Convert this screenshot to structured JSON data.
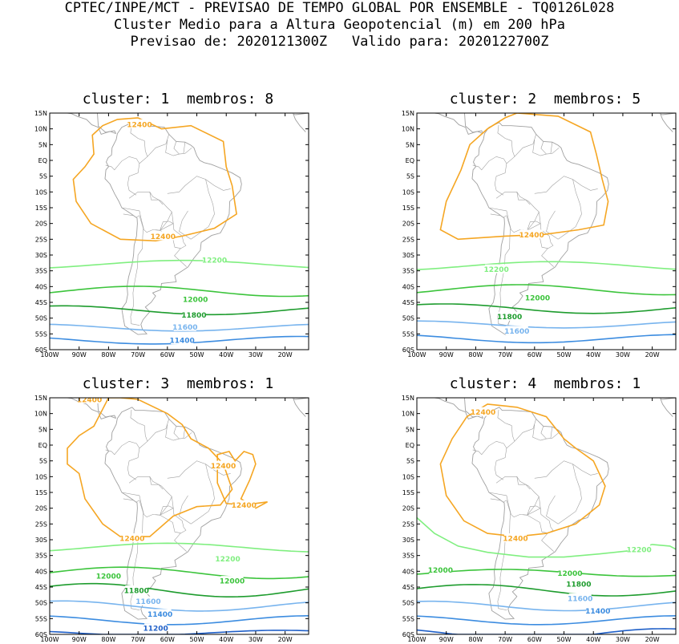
{
  "header": {
    "line1": "CPTEC/INPE/MCT - PREVISAO DE TEMPO GLOBAL POR ENSEMBLE - TQ0126L028",
    "line2": "Cluster Medio para a Altura Geopotencial (m) em 200 hPa",
    "line3": "Previsao de: 2020121300Z   Valido para: 2020122700Z"
  },
  "axes": {
    "lat_labels": [
      "15N",
      "10N",
      "5N",
      "EQ",
      "5S",
      "10S",
      "15S",
      "20S",
      "25S",
      "30S",
      "35S",
      "40S",
      "45S",
      "50S",
      "55S",
      "60S"
    ],
    "lon_labels": [
      "100W",
      "90W",
      "80W",
      "70W",
      "60W",
      "50W",
      "40W",
      "30W",
      "20W"
    ]
  },
  "colors": {
    "c12400": "#f5a623",
    "c12200": "#80ef80",
    "c12000": "#3cc43c",
    "c11800": "#1e9c2e",
    "c11600": "#78b4ee",
    "c11400": "#3c8ce0",
    "c11200": "#2060c8",
    "coast": "#a0a0a0"
  },
  "panels": [
    {
      "title": "cluster: 1  membros: 8",
      "labels": [
        {
          "text": "12400",
          "color": "c12400"
        },
        {
          "text": "12400",
          "color": "c12400"
        },
        {
          "text": "12200",
          "color": "c12200"
        },
        {
          "text": "12000",
          "color": "c12000"
        },
        {
          "text": "11800",
          "color": "c11800"
        },
        {
          "text": "11600",
          "color": "c11600"
        },
        {
          "text": "11400",
          "color": "c11400"
        }
      ]
    },
    {
      "title": "cluster: 2  membros: 5",
      "labels": [
        {
          "text": "12400",
          "color": "c12400"
        },
        {
          "text": "12200",
          "color": "c12200"
        },
        {
          "text": "12000",
          "color": "c12000"
        },
        {
          "text": "11800",
          "color": "c11800"
        },
        {
          "text": "11600",
          "color": "c11600"
        }
      ]
    },
    {
      "title": "cluster: 3  membros: 1",
      "labels": [
        {
          "text": "12400",
          "color": "c12400"
        },
        {
          "text": "12400",
          "color": "c12400"
        },
        {
          "text": "12400",
          "color": "c12400"
        },
        {
          "text": "12400",
          "color": "c12400"
        },
        {
          "text": "12200",
          "color": "c12200"
        },
        {
          "text": "12000",
          "color": "c12000"
        },
        {
          "text": "12000",
          "color": "c12000"
        },
        {
          "text": "11800",
          "color": "c11800"
        },
        {
          "text": "11600",
          "color": "c11600"
        },
        {
          "text": "11400",
          "color": "c11400"
        },
        {
          "text": "11200",
          "color": "c11200"
        }
      ]
    },
    {
      "title": "cluster: 4  membros: 1",
      "labels": [
        {
          "text": "12400",
          "color": "c12400"
        },
        {
          "text": "12400",
          "color": "c12400"
        },
        {
          "text": "12200",
          "color": "c12200"
        },
        {
          "text": "12000",
          "color": "c12000"
        },
        {
          "text": "12000",
          "color": "c12000"
        },
        {
          "text": "11800",
          "color": "c11800"
        },
        {
          "text": "11600",
          "color": "c11600"
        },
        {
          "text": "11400",
          "color": "c11400"
        }
      ]
    }
  ]
}
